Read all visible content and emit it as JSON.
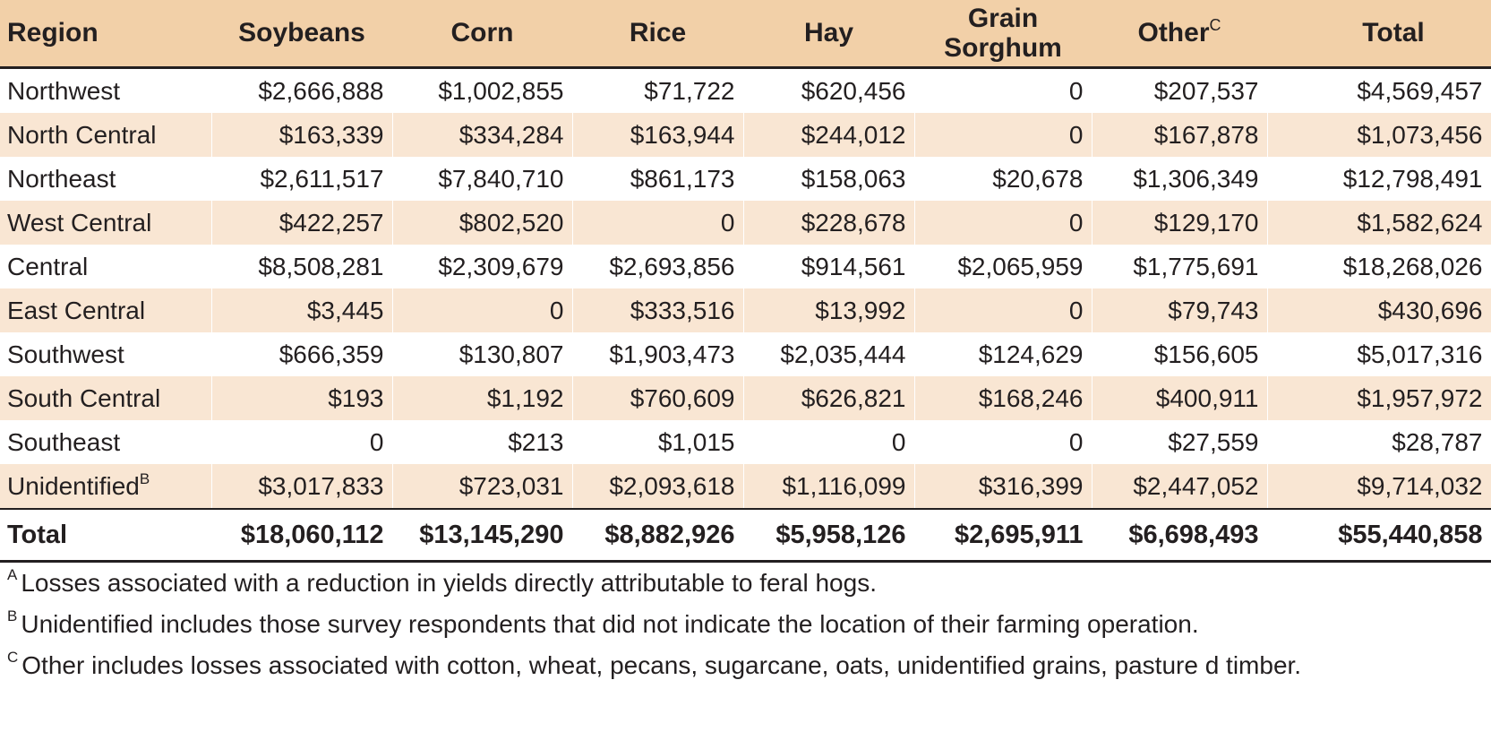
{
  "table": {
    "headers": {
      "region": "Region",
      "soybeans": "Soybeans",
      "corn": "Corn",
      "rice": "Rice",
      "hay": "Hay",
      "grain_sorghum_line1": "Grain",
      "grain_sorghum_line2": "Sorghum",
      "other": "Other",
      "other_sup": "C",
      "total": "Total"
    },
    "rows": [
      {
        "region": "Northwest",
        "sup": "",
        "soybeans": "$2,666,888",
        "corn": "$1,002,855",
        "rice": "$71,722",
        "hay": "$620,456",
        "grain_sorghum": "0",
        "other": "$207,537",
        "total": "$4,569,457"
      },
      {
        "region": "North Central",
        "sup": "",
        "soybeans": "$163,339",
        "corn": "$334,284",
        "rice": "$163,944",
        "hay": "$244,012",
        "grain_sorghum": "0",
        "other": "$167,878",
        "total": "$1,073,456"
      },
      {
        "region": "Northeast",
        "sup": "",
        "soybeans": "$2,611,517",
        "corn": "$7,840,710",
        "rice": "$861,173",
        "hay": "$158,063",
        "grain_sorghum": "$20,678",
        "other": "$1,306,349",
        "total": "$12,798,491"
      },
      {
        "region": "West Central",
        "sup": "",
        "soybeans": "$422,257",
        "corn": "$802,520",
        "rice": "0",
        "hay": "$228,678",
        "grain_sorghum": "0",
        "other": "$129,170",
        "total": "$1,582,624"
      },
      {
        "region": "Central",
        "sup": "",
        "soybeans": "$8,508,281",
        "corn": "$2,309,679",
        "rice": "$2,693,856",
        "hay": "$914,561",
        "grain_sorghum": "$2,065,959",
        "other": "$1,775,691",
        "total": "$18,268,026"
      },
      {
        "region": "East Central",
        "sup": "",
        "soybeans": "$3,445",
        "corn": "0",
        "rice": "$333,516",
        "hay": "$13,992",
        "grain_sorghum": "0",
        "other": "$79,743",
        "total": "$430,696"
      },
      {
        "region": "Southwest",
        "sup": "",
        "soybeans": "$666,359",
        "corn": "$130,807",
        "rice": "$1,903,473",
        "hay": "$2,035,444",
        "grain_sorghum": "$124,629",
        "other": "$156,605",
        "total": "$5,017,316"
      },
      {
        "region": "South Central",
        "sup": "",
        "soybeans": "$193",
        "corn": "$1,192",
        "rice": "$760,609",
        "hay": "$626,821",
        "grain_sorghum": "$168,246",
        "other": "$400,911",
        "total": "$1,957,972"
      },
      {
        "region": "Southeast",
        "sup": "",
        "soybeans": "0",
        "corn": "$213",
        "rice": "$1,015",
        "hay": "0",
        "grain_sorghum": "0",
        "other": "$27,559",
        "total": "$28,787"
      },
      {
        "region": "Unidentified",
        "sup": "B",
        "soybeans": "$3,017,833",
        "corn": "$723,031",
        "rice": "$2,093,618",
        "hay": "$1,116,099",
        "grain_sorghum": "$316,399",
        "other": "$2,447,052",
        "total": "$9,714,032"
      }
    ],
    "total_row": {
      "region": "Total",
      "soybeans": "$18,060,112",
      "corn": "$13,145,290",
      "rice": "$8,882,926",
      "hay": "$5,958,126",
      "grain_sorghum": "$2,695,911",
      "other": "$6,698,493",
      "total": "$55,440,858"
    }
  },
  "footnotes": [
    {
      "mark": "A",
      "text": "Losses associated with a reduction in yields directly attributable to feral hogs."
    },
    {
      "mark": "B",
      "text": "Unidentified includes those survey respondents that did not indicate the location of their farming operation."
    },
    {
      "mark": "C",
      "text": "Other includes losses associated with cotton, wheat, pecans, sugarcane, oats, unidentified grains, pasture d timber."
    }
  ],
  "colors": {
    "header_bg": "#f2d0a8",
    "shaded_row_bg": "#f9e6d3",
    "text": "#231f20"
  }
}
